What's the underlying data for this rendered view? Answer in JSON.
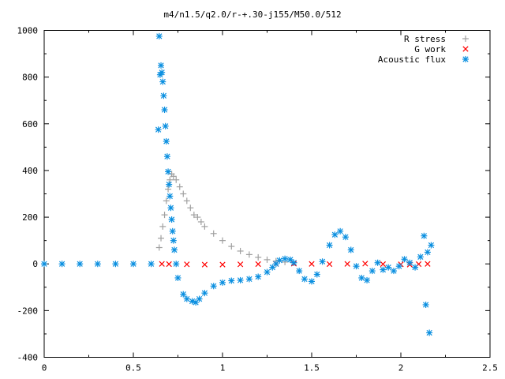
{
  "chart_data": {
    "type": "scatter",
    "title": "m4/n1.5/q2.0/r-+.30-j155/M50.0/512",
    "xlabel": "",
    "ylabel": "",
    "xlim": [
      0,
      2.5
    ],
    "ylim": [
      -400,
      1000
    ],
    "xticks": [
      "0",
      "0.5",
      "1",
      "1.5",
      "2",
      "2.5"
    ],
    "yticks": [
      "-400",
      "-200",
      "0",
      "200",
      "400",
      "600",
      "800",
      "1000"
    ],
    "grid": false,
    "legend_position": "top-right",
    "series": [
      {
        "name": "R stress",
        "marker": "plus",
        "color": "#a0a0a0",
        "x": [
          0.645,
          0.655,
          0.665,
          0.675,
          0.685,
          0.695,
          0.705,
          0.715,
          0.725,
          0.74,
          0.76,
          0.78,
          0.8,
          0.82,
          0.84,
          0.86,
          0.88,
          0.9,
          0.95,
          1.0,
          1.05,
          1.1,
          1.15,
          1.2,
          1.25,
          1.3,
          1.35,
          1.4
        ],
        "y": [
          70,
          110,
          160,
          210,
          270,
          320,
          360,
          385,
          375,
          360,
          330,
          300,
          270,
          240,
          210,
          200,
          180,
          160,
          130,
          100,
          75,
          55,
          40,
          28,
          18,
          12,
          8,
          5
        ]
      },
      {
        "name": "G work",
        "marker": "cross",
        "color": "#ff0000",
        "x": [
          0.66,
          0.7,
          0.8,
          0.9,
          1.0,
          1.1,
          1.2,
          1.3,
          1.4,
          1.5,
          1.6,
          1.7,
          1.8,
          1.9,
          2.0,
          2.05,
          2.1,
          2.15
        ],
        "y": [
          0,
          -1,
          -2,
          -3,
          -3,
          -2,
          -1,
          0,
          1,
          0,
          -1,
          0,
          1,
          -1,
          -2,
          -3,
          -1,
          0
        ]
      },
      {
        "name": "Acoustic flux",
        "marker": "star",
        "color": "#0a8fe0",
        "x": [
          0.0,
          0.1,
          0.2,
          0.3,
          0.4,
          0.5,
          0.6,
          0.64,
          0.645,
          0.65,
          0.655,
          0.66,
          0.665,
          0.67,
          0.675,
          0.68,
          0.685,
          0.69,
          0.695,
          0.7,
          0.705,
          0.71,
          0.715,
          0.72,
          0.725,
          0.73,
          0.74,
          0.75,
          0.78,
          0.8,
          0.83,
          0.85,
          0.87,
          0.9,
          0.95,
          1.0,
          1.05,
          1.1,
          1.15,
          1.2,
          1.25,
          1.28,
          1.3,
          1.32,
          1.35,
          1.38,
          1.4,
          1.43,
          1.46,
          1.5,
          1.53,
          1.56,
          1.6,
          1.63,
          1.66,
          1.69,
          1.72,
          1.75,
          1.78,
          1.81,
          1.84,
          1.87,
          1.9,
          1.93,
          1.96,
          1.99,
          2.02,
          2.05,
          2.08,
          2.11,
          2.13,
          2.14,
          2.15,
          2.16,
          2.17
        ],
        "y": [
          0,
          0,
          0,
          0,
          0,
          0,
          0,
          575,
          975,
          810,
          850,
          820,
          780,
          720,
          660,
          590,
          525,
          460,
          395,
          340,
          290,
          240,
          190,
          140,
          100,
          60,
          0,
          -60,
          -130,
          -150,
          -160,
          -165,
          -150,
          -125,
          -95,
          -80,
          -72,
          -70,
          -65,
          -55,
          -35,
          -15,
          0,
          15,
          22,
          18,
          5,
          -30,
          -65,
          -75,
          -45,
          10,
          80,
          125,
          140,
          115,
          60,
          -10,
          -60,
          -70,
          -30,
          5,
          -25,
          -15,
          -30,
          -10,
          20,
          5,
          -15,
          30,
          120,
          -175,
          50,
          -295,
          80
        ]
      }
    ]
  }
}
